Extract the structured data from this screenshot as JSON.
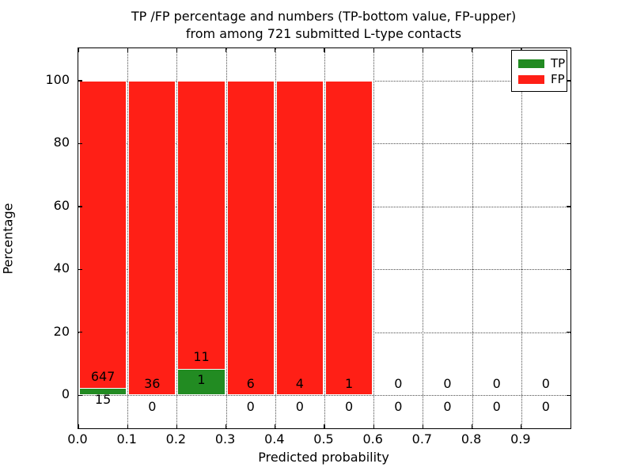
{
  "title": {
    "line1": "TP /FP percentage and numbers (TP-bottom value, FP-upper)",
    "line2": "from among 721 submitted L-type contacts"
  },
  "axes": {
    "xlabel": "Predicted probability",
    "ylabel": "Percentage"
  },
  "legend": {
    "position": "upper right",
    "entries": [
      {
        "label": "TP",
        "color": "#228b22"
      },
      {
        "label": "FP",
        "color": "#ff1f16"
      }
    ]
  },
  "chart_data": {
    "type": "bar",
    "stacked": true,
    "percent_mode": "each bin stacked to 100% (TP share bottom, FP share top)",
    "title": "TP /FP percentage and numbers (TP-bottom value, FP-upper)\nfrom among 721 submitted L-type contacts",
    "xlabel": "Predicted probability",
    "ylabel": "Percentage",
    "total_contacts": 721,
    "bin_width": 0.1,
    "categories": [
      0.0,
      0.1,
      0.2,
      0.3,
      0.4,
      0.5,
      0.6,
      0.7,
      0.8,
      0.9
    ],
    "series": [
      {
        "name": "TP",
        "color": "#228b22",
        "counts": [
          15,
          0,
          1,
          0,
          0,
          0,
          0,
          0,
          0,
          0
        ]
      },
      {
        "name": "FP",
        "color": "#ff1f16",
        "counts": [
          647,
          36,
          11,
          6,
          4,
          1,
          0,
          0,
          0,
          0
        ]
      }
    ],
    "bar_edge_color": "#ffffff",
    "xticks": [
      "0.0",
      "0.1",
      "0.2",
      "0.3",
      "0.4",
      "0.5",
      "0.6",
      "0.7",
      "0.8",
      "0.9"
    ],
    "yticks": [
      0,
      20,
      40,
      60,
      80,
      100
    ],
    "xlim": [
      0,
      1.0
    ],
    "ylim": [
      -10.5,
      110.3
    ],
    "grid": "dotted",
    "legend_position": "upper right"
  }
}
